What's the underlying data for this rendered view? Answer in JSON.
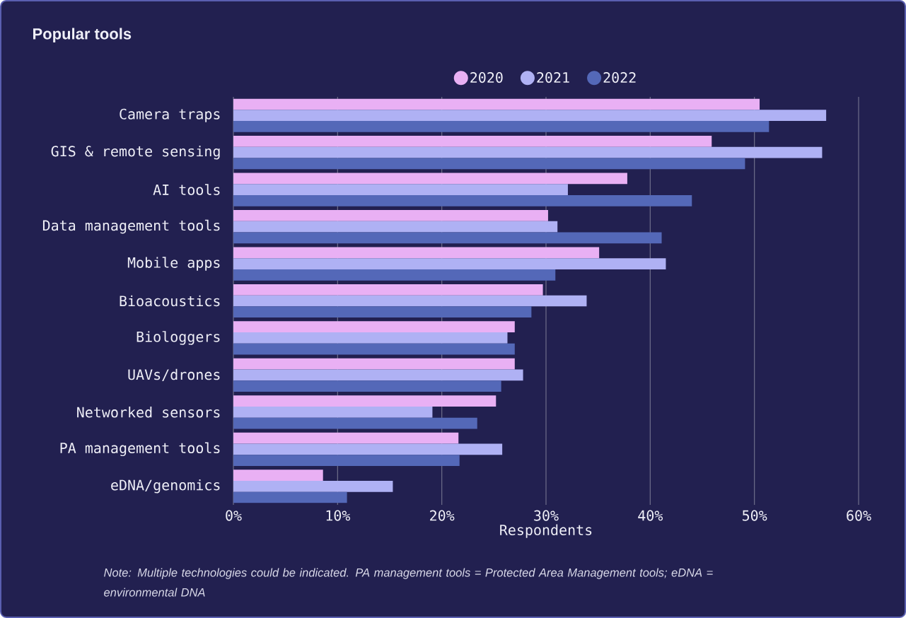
{
  "chart_data": {
    "type": "bar",
    "orientation": "horizontal",
    "title": "Popular tools",
    "xlabel": "Respondents",
    "categories": [
      "Camera traps",
      "GIS & remote sensing",
      "AI tools",
      "Data management tools",
      "Mobile apps",
      "Bioacoustics",
      "Biologgers",
      "UAVs/drones",
      "Networked sensors",
      "PA management tools",
      "eDNA/genomics"
    ],
    "series": [
      {
        "name": "2020",
        "color": "#e9b0f4",
        "values": [
          50.5,
          45.9,
          37.8,
          30.2,
          35.1,
          29.7,
          27.0,
          27.0,
          25.2,
          21.6,
          8.6
        ]
      },
      {
        "name": "2021",
        "color": "#afb1f4",
        "values": [
          56.9,
          56.5,
          32.1,
          31.1,
          41.5,
          33.9,
          26.3,
          27.8,
          19.1,
          25.8,
          15.3
        ]
      },
      {
        "name": "2022",
        "color": "#5468b8",
        "values": [
          51.4,
          49.1,
          44.0,
          41.1,
          30.9,
          28.6,
          27.0,
          25.7,
          23.4,
          21.7,
          10.9
        ]
      }
    ],
    "xlim": [
      0,
      60
    ],
    "xticks": [
      {
        "value": 0,
        "label": "0%"
      },
      {
        "value": 10,
        "label": "10%"
      },
      {
        "value": 20,
        "label": "20%"
      },
      {
        "value": 30,
        "label": "30%"
      },
      {
        "value": 40,
        "label": "40%"
      },
      {
        "value": 50,
        "label": "50%"
      },
      {
        "value": 60,
        "label": "60%"
      }
    ],
    "grid": "x",
    "legend": "top",
    "annotations": [
      "Note: Multiple technologies could be indicated. PA management tools = Protected Area Management tools; eDNA = environmental DNA"
    ]
  }
}
